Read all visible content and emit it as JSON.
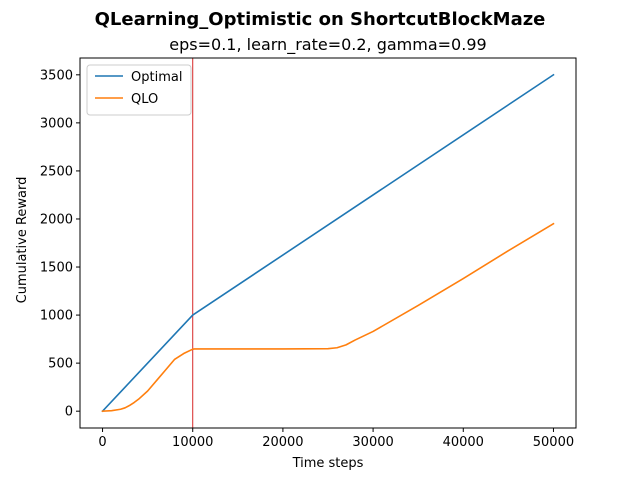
{
  "chart_data": {
    "type": "line",
    "title": "QLearning_Optimistic on ShortcutBlockMaze",
    "subtitle": "eps=0.1, learn_rate=0.2, gamma=0.99",
    "xlabel": "Time steps",
    "ylabel": "Cumulative Reward",
    "xlim": [
      -2500,
      52500
    ],
    "ylim": [
      -175,
      3675
    ],
    "xticks": [
      0,
      10000,
      20000,
      30000,
      40000,
      50000
    ],
    "yticks": [
      0,
      500,
      1000,
      1500,
      2000,
      2500,
      3000,
      3500
    ],
    "grid": false,
    "legend_position": "upper-left",
    "vertical_marker": {
      "x": 10000,
      "color": "#d62728"
    },
    "series": [
      {
        "name": "Optimal",
        "color": "#1f77b4",
        "x": [
          0,
          10000,
          50000
        ],
        "y": [
          0,
          1000,
          3500
        ]
      },
      {
        "name": "QLO",
        "color": "#ff7f0e",
        "x": [
          0,
          1000,
          2000,
          2500,
          3000,
          3500,
          4000,
          5000,
          6000,
          7000,
          8000,
          9000,
          10000,
          10200,
          12000,
          15000,
          20000,
          25000,
          26000,
          27000,
          28000,
          30000,
          35000,
          40000,
          45000,
          50000
        ],
        "y": [
          0,
          5,
          20,
          35,
          60,
          90,
          125,
          210,
          320,
          430,
          540,
          600,
          645,
          648,
          648,
          648,
          648,
          650,
          660,
          690,
          740,
          830,
          1100,
          1380,
          1670,
          1950
        ]
      }
    ]
  }
}
